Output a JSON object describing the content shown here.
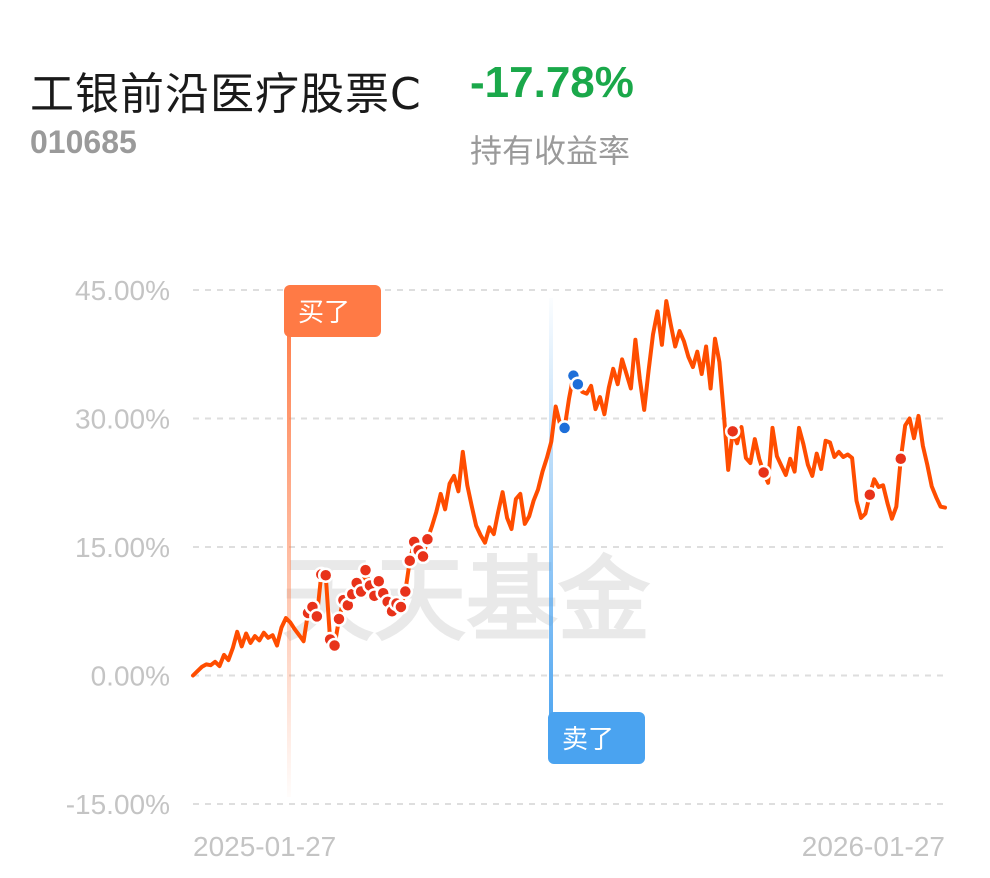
{
  "header": {
    "fund_name": "工银前沿医疗股票C",
    "fund_code": "010685",
    "return_value": "-17.78%",
    "return_label": "持有收益率"
  },
  "colors": {
    "line": "#ff4d00",
    "buy_marker": "#ff7a45",
    "sell_marker": "#4aa3f0",
    "sell_point": "#1e6fd9",
    "negative_return": "#1aa84a"
  },
  "chart_data": {
    "type": "line",
    "y_ticks": [
      "45.00%",
      "30.00%",
      "15.00%",
      "0.00%",
      "-15.00%"
    ],
    "ylim": [
      -15,
      45
    ],
    "x_labels": [
      "2025-01-27",
      "2026-01-27"
    ],
    "grid": true,
    "watermark": "天天基金",
    "markers": {
      "buy_label": "买了",
      "sell_label": "卖了"
    },
    "series": [
      {
        "values": [
          0,
          0.5,
          1,
          1.3,
          1.2,
          1.6,
          1.1,
          2.4,
          1.8,
          3.2,
          5.1,
          3.4,
          4.9,
          3.8,
          4.6,
          4.1,
          5.0,
          4.4,
          4.7,
          3.5,
          5.6,
          6.7,
          6.2,
          5.4,
          4.7,
          4.0,
          7.3,
          8.0,
          6.9,
          11.8,
          11.7,
          4.2,
          3.5,
          6.6,
          8.8,
          8.2,
          9.5,
          10.8,
          9.8,
          12.3,
          10.5,
          9.3,
          11.0,
          9.6,
          8.6,
          7.5,
          8.4,
          8.0,
          9.8,
          13.4,
          15.6,
          14.6,
          13.9,
          15.9,
          17.4,
          19.1,
          21.2,
          19.4,
          22.4,
          23.3,
          21.5,
          26.1,
          22.2,
          19.8,
          17.5,
          16.4,
          15.5,
          17.3,
          16.5,
          19.1,
          21.4,
          18.4,
          17.1,
          20.6,
          21.2,
          17.7,
          18.6,
          20.4,
          21.7,
          23.8,
          25.4,
          27.3,
          31.4,
          29.3,
          28.9,
          32.3,
          35.0,
          34.0,
          33.1,
          32.9,
          33.8,
          31.1,
          32.5,
          30.5,
          33.6,
          35.8,
          34.0,
          36.9,
          35.2,
          33.5,
          39.2,
          34.6,
          31.0,
          35.6,
          39.8,
          42.5,
          38.6,
          43.7,
          41.0,
          38.4,
          40.2,
          39.0,
          37.2,
          36.0,
          37.8,
          35.2,
          38.4,
          33.5,
          39.3,
          36.6,
          30.6,
          24.0,
          28.5,
          27.1,
          29.0,
          25.4,
          24.8,
          27.6,
          25.3,
          23.7,
          22.5,
          28.9,
          25.6,
          24.5,
          23.4,
          25.3,
          23.8,
          28.9,
          27.0,
          24.6,
          23.3,
          25.9,
          24.1,
          27.4,
          27.2,
          25.5,
          26.1,
          25.5,
          25.8,
          25.4,
          20.4,
          18.4,
          18.9,
          21.1,
          22.9,
          22.0,
          22.2,
          20.1,
          18.3,
          19.7,
          25.3,
          29.2,
          30.0,
          27.7,
          30.3,
          26.8,
          24.6,
          22.1,
          20.8,
          19.7,
          19.6
        ],
        "buy_points": [
          26,
          27,
          28,
          29,
          30,
          31,
          32,
          33,
          34,
          35,
          36,
          37,
          38,
          39,
          40,
          41,
          42,
          43,
          44,
          45,
          46,
          47,
          48,
          49,
          50,
          51,
          52,
          53,
          122,
          129,
          153,
          160
        ],
        "sell_points": [
          84,
          86,
          87
        ]
      }
    ]
  }
}
